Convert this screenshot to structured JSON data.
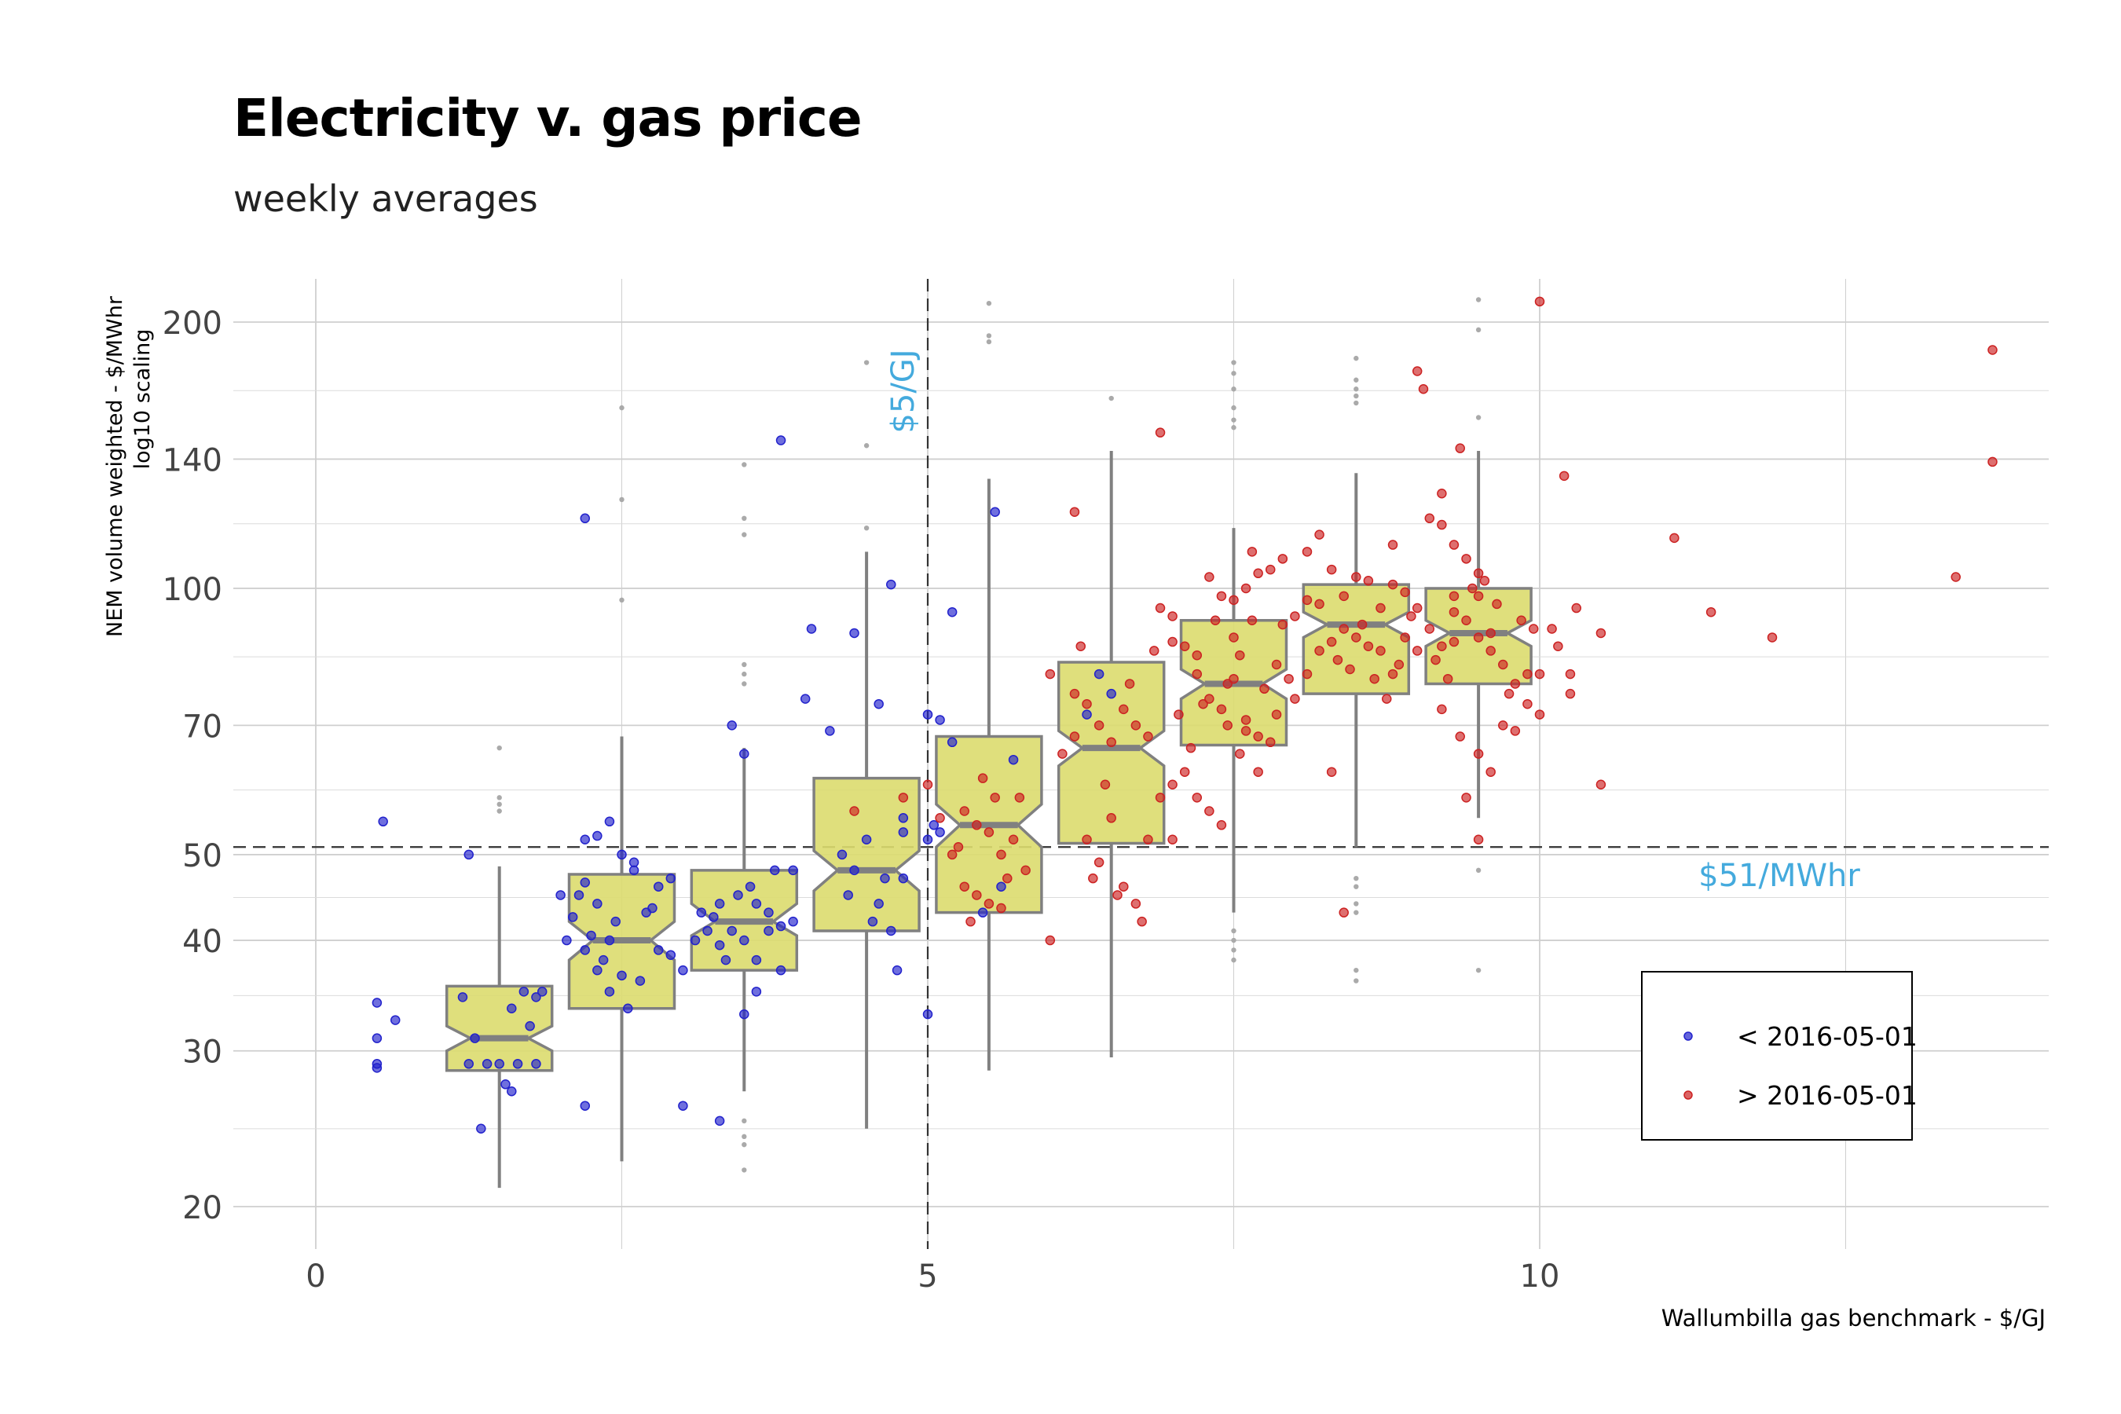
{
  "chart_data": {
    "type": "boxplot-scatter",
    "title": "Electricity v. gas price",
    "subtitle": "weekly averages",
    "xlabel": "Wallumbilla gas benchmark - $/GJ",
    "ylabel_line1": "NEM volume weighted - $/MWhr",
    "ylabel_line2": "log10 scaling",
    "x_scale": "linear",
    "y_scale": "log10",
    "xlim": [
      -0.7,
      14.2
    ],
    "ylim": [
      18.5,
      222
    ],
    "x_ticks": [
      0,
      5,
      10
    ],
    "x_tick_labels": [
      "0",
      "5",
      "10"
    ],
    "y_ticks": [
      20,
      30,
      40,
      50,
      70,
      100,
      140,
      200
    ],
    "y_tick_labels": [
      "20",
      "30",
      "40",
      "50",
      "70",
      "100",
      "140",
      "200"
    ],
    "grid": true,
    "legend_position": "bottom-right",
    "colors": {
      "before": "#2222cc",
      "after": "#cc2222",
      "box_fill": "#dcdc6e",
      "box_stroke": "#808080",
      "annotation": "#44aadd",
      "grid": "#cccccc"
    },
    "reference_lines": [
      {
        "axis": "x",
        "value": 5,
        "label": "$5/GJ"
      },
      {
        "axis": "y",
        "value": 51,
        "label": "$51/MWhr"
      }
    ],
    "legend": [
      {
        "label": "< 2016-05-01",
        "color": "#2222cc"
      },
      {
        "label": "> 2016-05-01",
        "color": "#cc2222"
      }
    ],
    "boxes": [
      {
        "x": 1.5,
        "q1": 28.5,
        "median": 31,
        "q3": 35.5,
        "lower": 21,
        "upper": 48.5,
        "notch_low": 30,
        "notch_high": 32,
        "outliers": [
          66,
          58,
          57,
          56
        ]
      },
      {
        "x": 2.5,
        "q1": 33.5,
        "median": 40,
        "q3": 47.5,
        "lower": 22.5,
        "upper": 68,
        "notch_low": 38,
        "notch_high": 42,
        "outliers": [
          97,
          126,
          160
        ]
      },
      {
        "x": 3.5,
        "q1": 37,
        "median": 42,
        "q3": 48,
        "lower": 27,
        "upper": 66,
        "notch_low": 40.5,
        "notch_high": 44,
        "outliers": [
          78,
          80,
          82,
          115,
          120,
          138,
          25,
          24,
          23.5,
          22
        ]
      },
      {
        "x": 4.5,
        "q1": 41,
        "median": 48,
        "q3": 61,
        "lower": 24.5,
        "upper": 110,
        "notch_low": 45.5,
        "notch_high": 50.5,
        "outliers": [
          117,
          145,
          180
        ]
      },
      {
        "x": 5.5,
        "q1": 43,
        "median": 54,
        "q3": 68,
        "lower": 28.5,
        "upper": 133,
        "notch_low": 51,
        "notch_high": 57,
        "outliers": [
          190,
          193,
          210
        ]
      },
      {
        "x": 6.5,
        "q1": 51.5,
        "median": 66,
        "q3": 82.5,
        "lower": 29.5,
        "upper": 143,
        "notch_low": 63,
        "notch_high": 69,
        "outliers": [
          164
        ]
      },
      {
        "x": 7.5,
        "q1": 66.5,
        "median": 78,
        "q3": 92,
        "lower": 43,
        "upper": 117,
        "notch_low": 75,
        "notch_high": 81,
        "outliers": [
          180,
          175,
          168,
          160,
          155,
          152,
          41,
          40,
          39,
          38
        ]
      },
      {
        "x": 8.5,
        "q1": 76,
        "median": 91,
        "q3": 101,
        "lower": 51,
        "upper": 135,
        "notch_low": 88,
        "notch_high": 94,
        "outliers": [
          182,
          172,
          168,
          165,
          162,
          47,
          46,
          44,
          43,
          37,
          36
        ]
      },
      {
        "x": 9.5,
        "q1": 78,
        "median": 89,
        "q3": 100,
        "lower": 55,
        "upper": 143,
        "notch_low": 86,
        "notch_high": 92,
        "outliers": [
          212,
          196,
          156,
          48,
          37
        ]
      }
    ],
    "points_before": [
      [
        0.5,
        34
      ],
      [
        0.5,
        31
      ],
      [
        0.65,
        32.5
      ],
      [
        0.5,
        29
      ],
      [
        0.55,
        54.5
      ],
      [
        0.5,
        28.7
      ],
      [
        1.2,
        34.5
      ],
      [
        1.3,
        31
      ],
      [
        1.4,
        29
      ],
      [
        1.35,
        24.5
      ],
      [
        1.6,
        33.5
      ],
      [
        1.7,
        35
      ],
      [
        1.75,
        32
      ],
      [
        1.8,
        29
      ],
      [
        1.65,
        29
      ],
      [
        1.5,
        29
      ],
      [
        1.55,
        27.5
      ],
      [
        1.25,
        29
      ],
      [
        1.8,
        34.5
      ],
      [
        1.6,
        27
      ],
      [
        1.25,
        50
      ],
      [
        1.85,
        35
      ],
      [
        2.0,
        45
      ],
      [
        2.1,
        42.5
      ],
      [
        2.2,
        46.5
      ],
      [
        2.2,
        52
      ],
      [
        2.3,
        52.5
      ],
      [
        2.4,
        54.5
      ],
      [
        2.2,
        39
      ],
      [
        2.3,
        37
      ],
      [
        2.4,
        35
      ],
      [
        2.5,
        36.5
      ],
      [
        2.4,
        40
      ],
      [
        2.2,
        120
      ],
      [
        2.6,
        49
      ],
      [
        2.65,
        36
      ],
      [
        2.7,
        43
      ],
      [
        2.8,
        46
      ],
      [
        2.9,
        47
      ],
      [
        2.8,
        39
      ],
      [
        2.6,
        48
      ],
      [
        2.2,
        26
      ],
      [
        2.9,
        38.5
      ],
      [
        2.5,
        50
      ],
      [
        2.3,
        44
      ],
      [
        2.55,
        33.5
      ],
      [
        2.15,
        45
      ],
      [
        2.45,
        42
      ],
      [
        2.75,
        43.5
      ],
      [
        2.05,
        40
      ],
      [
        2.35,
        38
      ],
      [
        2.25,
        40.5
      ],
      [
        3.0,
        37
      ],
      [
        3.2,
        41
      ],
      [
        3.3,
        39.5
      ],
      [
        3.5,
        40
      ],
      [
        3.6,
        44
      ],
      [
        3.7,
        41
      ],
      [
        3.8,
        37
      ],
      [
        3.9,
        48
      ],
      [
        3.9,
        42
      ],
      [
        3.4,
        70
      ],
      [
        3.5,
        65
      ],
      [
        3.1,
        40
      ],
      [
        3.6,
        35
      ],
      [
        3.5,
        33
      ],
      [
        3.35,
        38
      ],
      [
        3.25,
        42.5
      ],
      [
        3.55,
        46
      ],
      [
        3.7,
        43
      ],
      [
        3.45,
        45
      ],
      [
        3.15,
        43
      ],
      [
        3.8,
        41.5
      ],
      [
        3.3,
        44
      ],
      [
        3.6,
        38
      ],
      [
        3.4,
        41
      ],
      [
        3.0,
        26
      ],
      [
        3.3,
        25
      ],
      [
        3.75,
        48
      ],
      [
        3.8,
        147
      ],
      [
        4.0,
        75
      ],
      [
        4.05,
        90
      ],
      [
        4.2,
        69
      ],
      [
        4.3,
        50
      ],
      [
        4.4,
        89
      ],
      [
        4.5,
        52
      ],
      [
        4.6,
        74
      ],
      [
        4.7,
        101
      ],
      [
        4.8,
        55
      ],
      [
        4.8,
        53
      ],
      [
        4.6,
        44
      ],
      [
        4.55,
        42
      ],
      [
        4.7,
        41
      ],
      [
        4.75,
        37
      ],
      [
        4.35,
        45
      ],
      [
        4.4,
        48
      ],
      [
        4.65,
        47
      ],
      [
        4.8,
        47
      ],
      [
        5.0,
        72
      ],
      [
        5.1,
        71
      ],
      [
        5.2,
        94
      ],
      [
        5.1,
        53
      ],
      [
        5.05,
        54
      ],
      [
        5.0,
        52
      ],
      [
        5.0,
        33
      ],
      [
        5.2,
        67
      ],
      [
        5.55,
        122
      ],
      [
        5.7,
        64
      ],
      [
        5.45,
        43
      ],
      [
        5.6,
        46
      ],
      [
        6.4,
        80
      ],
      [
        6.5,
        76
      ],
      [
        6.3,
        72
      ]
    ],
    "points_after": [
      [
        4.4,
        56
      ],
      [
        4.8,
        58
      ],
      [
        5.1,
        55
      ],
      [
        5.0,
        60
      ],
      [
        5.2,
        50
      ],
      [
        5.3,
        56
      ],
      [
        5.4,
        54
      ],
      [
        5.5,
        53
      ],
      [
        5.6,
        50
      ],
      [
        5.5,
        44
      ],
      [
        5.7,
        52
      ],
      [
        5.8,
        48
      ],
      [
        5.35,
        42
      ],
      [
        5.55,
        58
      ],
      [
        5.45,
        61
      ],
      [
        5.65,
        47
      ],
      [
        5.3,
        46
      ],
      [
        5.75,
        58
      ],
      [
        5.25,
        51
      ],
      [
        5.6,
        43.5
      ],
      [
        5.4,
        45
      ],
      [
        6.0,
        80
      ],
      [
        6.2,
        76
      ],
      [
        6.3,
        74
      ],
      [
        6.4,
        70
      ],
      [
        6.5,
        67
      ],
      [
        6.6,
        73
      ],
      [
        6.7,
        70
      ],
      [
        6.8,
        68
      ],
      [
        6.9,
        95
      ],
      [
        7.0,
        93
      ],
      [
        6.1,
        65
      ],
      [
        6.2,
        68
      ],
      [
        6.3,
        52
      ],
      [
        6.4,
        49
      ],
      [
        6.5,
        55
      ],
      [
        6.6,
        46
      ],
      [
        6.7,
        44
      ],
      [
        6.8,
        52
      ],
      [
        6.9,
        58
      ],
      [
        7.0,
        60
      ],
      [
        6.2,
        122
      ],
      [
        6.9,
        150
      ],
      [
        6.0,
        40
      ],
      [
        6.35,
        47
      ],
      [
        6.55,
        45
      ],
      [
        6.75,
        42
      ],
      [
        6.45,
        60
      ],
      [
        6.65,
        78
      ],
      [
        6.85,
        85
      ],
      [
        6.25,
        86
      ],
      [
        7.0,
        87
      ],
      [
        7.1,
        86
      ],
      [
        7.2,
        80
      ],
      [
        7.3,
        75
      ],
      [
        7.4,
        73
      ],
      [
        7.5,
        79
      ],
      [
        7.6,
        71
      ],
      [
        7.7,
        68
      ],
      [
        7.8,
        67
      ],
      [
        7.9,
        91
      ],
      [
        8.0,
        93
      ],
      [
        7.2,
        58
      ],
      [
        7.3,
        56
      ],
      [
        7.4,
        54
      ],
      [
        7.0,
        52
      ],
      [
        7.1,
        62
      ],
      [
        7.6,
        100
      ],
      [
        7.7,
        104
      ],
      [
        7.8,
        105
      ],
      [
        7.9,
        108
      ],
      [
        8.1,
        110
      ],
      [
        8.2,
        115
      ],
      [
        8.1,
        97
      ],
      [
        8.3,
        62
      ],
      [
        8.4,
        43
      ],
      [
        7.5,
        88
      ],
      [
        7.55,
        84
      ],
      [
        7.65,
        92
      ],
      [
        7.85,
        82
      ],
      [
        7.25,
        74
      ],
      [
        7.45,
        78
      ],
      [
        7.35,
        92
      ],
      [
        7.15,
        66
      ],
      [
        7.05,
        72
      ],
      [
        7.75,
        77
      ],
      [
        7.95,
        79
      ],
      [
        7.6,
        69
      ],
      [
        7.5,
        97
      ],
      [
        7.65,
        110
      ],
      [
        7.4,
        98
      ],
      [
        7.3,
        103
      ],
      [
        7.2,
        84
      ],
      [
        7.85,
        72
      ],
      [
        7.7,
        62
      ],
      [
        7.55,
        65
      ],
      [
        7.45,
        70
      ],
      [
        8.0,
        75
      ],
      [
        8.1,
        80
      ],
      [
        8.2,
        85
      ],
      [
        8.3,
        87
      ],
      [
        8.4,
        90
      ],
      [
        8.5,
        88
      ],
      [
        8.6,
        86
      ],
      [
        8.7,
        85
      ],
      [
        8.8,
        80
      ],
      [
        8.9,
        88
      ],
      [
        9.0,
        85
      ],
      [
        9.1,
        120
      ],
      [
        9.2,
        128
      ],
      [
        9.3,
        112
      ],
      [
        9.4,
        108
      ],
      [
        9.5,
        104
      ],
      [
        8.6,
        102
      ],
      [
        8.7,
        95
      ],
      [
        8.8,
        101
      ],
      [
        8.9,
        99
      ],
      [
        8.5,
        103
      ],
      [
        8.3,
        105
      ],
      [
        8.4,
        98
      ],
      [
        8.2,
        96
      ],
      [
        9.0,
        176
      ],
      [
        9.05,
        168
      ],
      [
        8.8,
        112
      ],
      [
        9.2,
        118
      ],
      [
        8.75,
        75
      ],
      [
        8.85,
        82
      ],
      [
        8.65,
        79
      ],
      [
        8.45,
        81
      ],
      [
        8.55,
        91
      ],
      [
        8.95,
        93
      ],
      [
        8.35,
        83
      ],
      [
        9.0,
        95
      ],
      [
        9.1,
        90
      ],
      [
        9.2,
        86
      ],
      [
        9.3,
        94
      ],
      [
        9.4,
        92
      ],
      [
        9.5,
        88
      ],
      [
        9.6,
        85
      ],
      [
        9.7,
        82
      ],
      [
        9.8,
        78
      ],
      [
        9.9,
        74
      ],
      [
        10.0,
        72
      ],
      [
        9.2,
        73
      ],
      [
        9.35,
        68
      ],
      [
        9.5,
        65
      ],
      [
        9.6,
        62
      ],
      [
        9.4,
        58
      ],
      [
        9.5,
        52
      ],
      [
        9.7,
        70
      ],
      [
        9.8,
        69
      ],
      [
        9.9,
        80
      ],
      [
        10.0,
        80
      ],
      [
        9.3,
        98
      ],
      [
        9.45,
        100
      ],
      [
        9.55,
        102
      ],
      [
        9.65,
        96
      ],
      [
        9.85,
        92
      ],
      [
        9.95,
        90
      ],
      [
        9.15,
        83
      ],
      [
        9.25,
        79
      ],
      [
        9.75,
        76
      ],
      [
        9.35,
        144
      ],
      [
        9.5,
        98
      ],
      [
        9.3,
        87
      ],
      [
        9.6,
        89
      ],
      [
        10.0,
        211
      ],
      [
        10.2,
        134
      ],
      [
        10.3,
        95
      ],
      [
        10.25,
        80
      ],
      [
        10.25,
        76
      ],
      [
        10.5,
        89
      ],
      [
        10.5,
        60
      ],
      [
        11.1,
        114
      ],
      [
        11.4,
        94
      ],
      [
        11.9,
        88
      ],
      [
        13.4,
        103
      ],
      [
        13.7,
        186
      ],
      [
        13.7,
        139
      ],
      [
        10.1,
        90
      ],
      [
        10.15,
        86
      ]
    ]
  }
}
